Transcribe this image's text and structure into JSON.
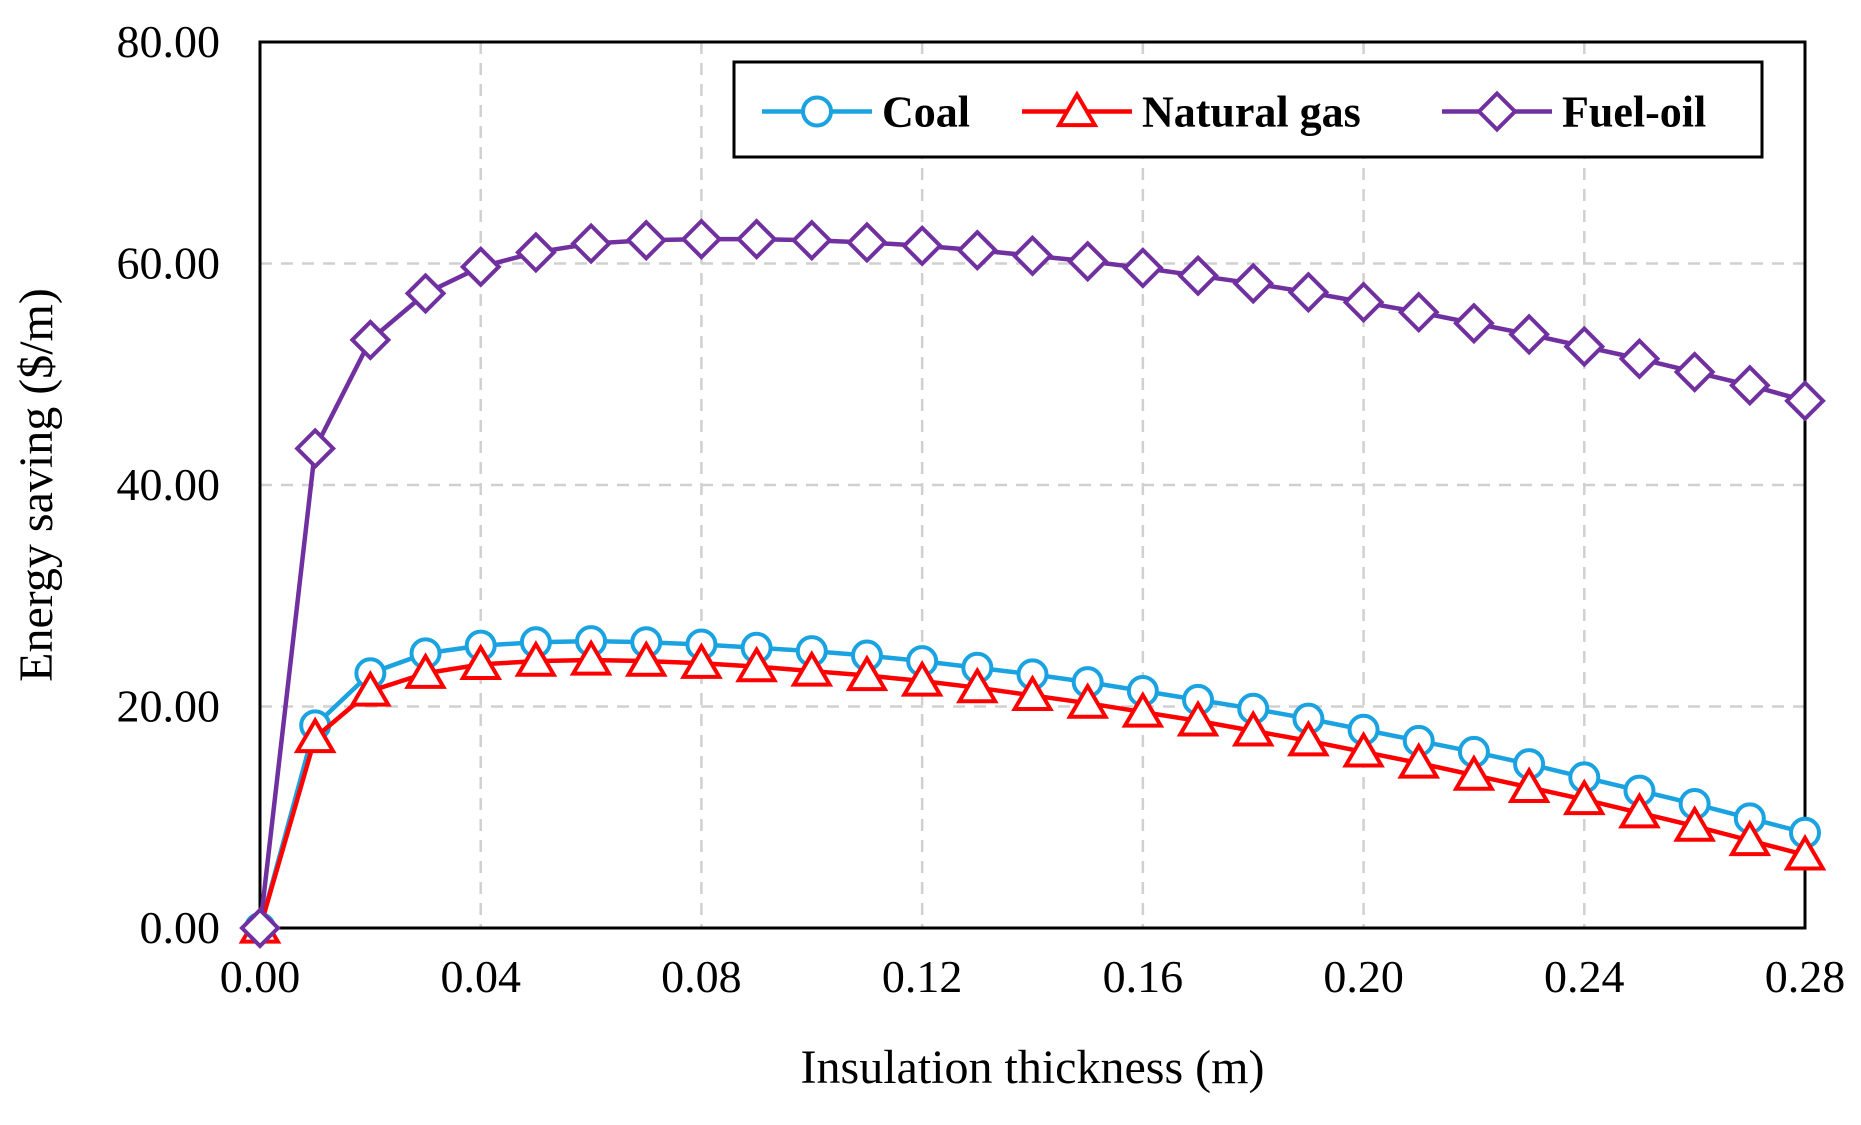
{
  "chart_data": {
    "type": "line",
    "title": "",
    "xlabel": "Insulation thickness (m)",
    "ylabel": "Energy saving ($/m)",
    "xlim": [
      0,
      0.28
    ],
    "ylim": [
      0,
      80
    ],
    "xticks": [
      0,
      0.04,
      0.08,
      0.12,
      0.16,
      0.2,
      0.24,
      0.28
    ],
    "xtick_labels": [
      "0.00",
      "0.04",
      "0.08",
      "0.12",
      "0.16",
      "0.20",
      "0.24",
      "0.28"
    ],
    "yticks": [
      0,
      20,
      40,
      60,
      80
    ],
    "ytick_labels": [
      "0.00",
      "20.00",
      "40.00",
      "60.00",
      "80.00"
    ],
    "grid": true,
    "legend_position": "top-right",
    "x": [
      0,
      0.01,
      0.02,
      0.03,
      0.04,
      0.05,
      0.06,
      0.07,
      0.08,
      0.09,
      0.1,
      0.11,
      0.12,
      0.13,
      0.14,
      0.15,
      0.16,
      0.17,
      0.18,
      0.19,
      0.2,
      0.21,
      0.22,
      0.23,
      0.24,
      0.25,
      0.26,
      0.27,
      0.28
    ],
    "series": [
      {
        "name": "Coal",
        "color": "#1aa3e0",
        "marker": "circle",
        "values": [
          0,
          18.3,
          23.0,
          24.8,
          25.5,
          25.8,
          25.9,
          25.8,
          25.6,
          25.3,
          25.0,
          24.6,
          24.1,
          23.5,
          22.9,
          22.2,
          21.4,
          20.6,
          19.8,
          18.9,
          17.9,
          16.9,
          15.9,
          14.8,
          13.6,
          12.4,
          11.2,
          9.9,
          8.6
        ]
      },
      {
        "name": "Natural gas",
        "color": "#ff0000",
        "marker": "triangle",
        "values": [
          0,
          17.2,
          21.4,
          23.0,
          23.8,
          24.1,
          24.2,
          24.1,
          23.9,
          23.6,
          23.2,
          22.8,
          22.3,
          21.7,
          21.0,
          20.3,
          19.5,
          18.7,
          17.8,
          16.9,
          15.9,
          14.9,
          13.8,
          12.7,
          11.6,
          10.4,
          9.2,
          7.9,
          6.6
        ]
      },
      {
        "name": "Fuel-oil",
        "color": "#7030a0",
        "marker": "diamond",
        "values": [
          0,
          43.3,
          53.1,
          57.3,
          59.7,
          61.0,
          61.8,
          62.1,
          62.2,
          62.2,
          62.1,
          61.9,
          61.6,
          61.2,
          60.7,
          60.2,
          59.6,
          58.9,
          58.2,
          57.4,
          56.5,
          55.6,
          54.6,
          53.6,
          52.5,
          51.4,
          50.2,
          49.0,
          47.6
        ]
      }
    ]
  }
}
